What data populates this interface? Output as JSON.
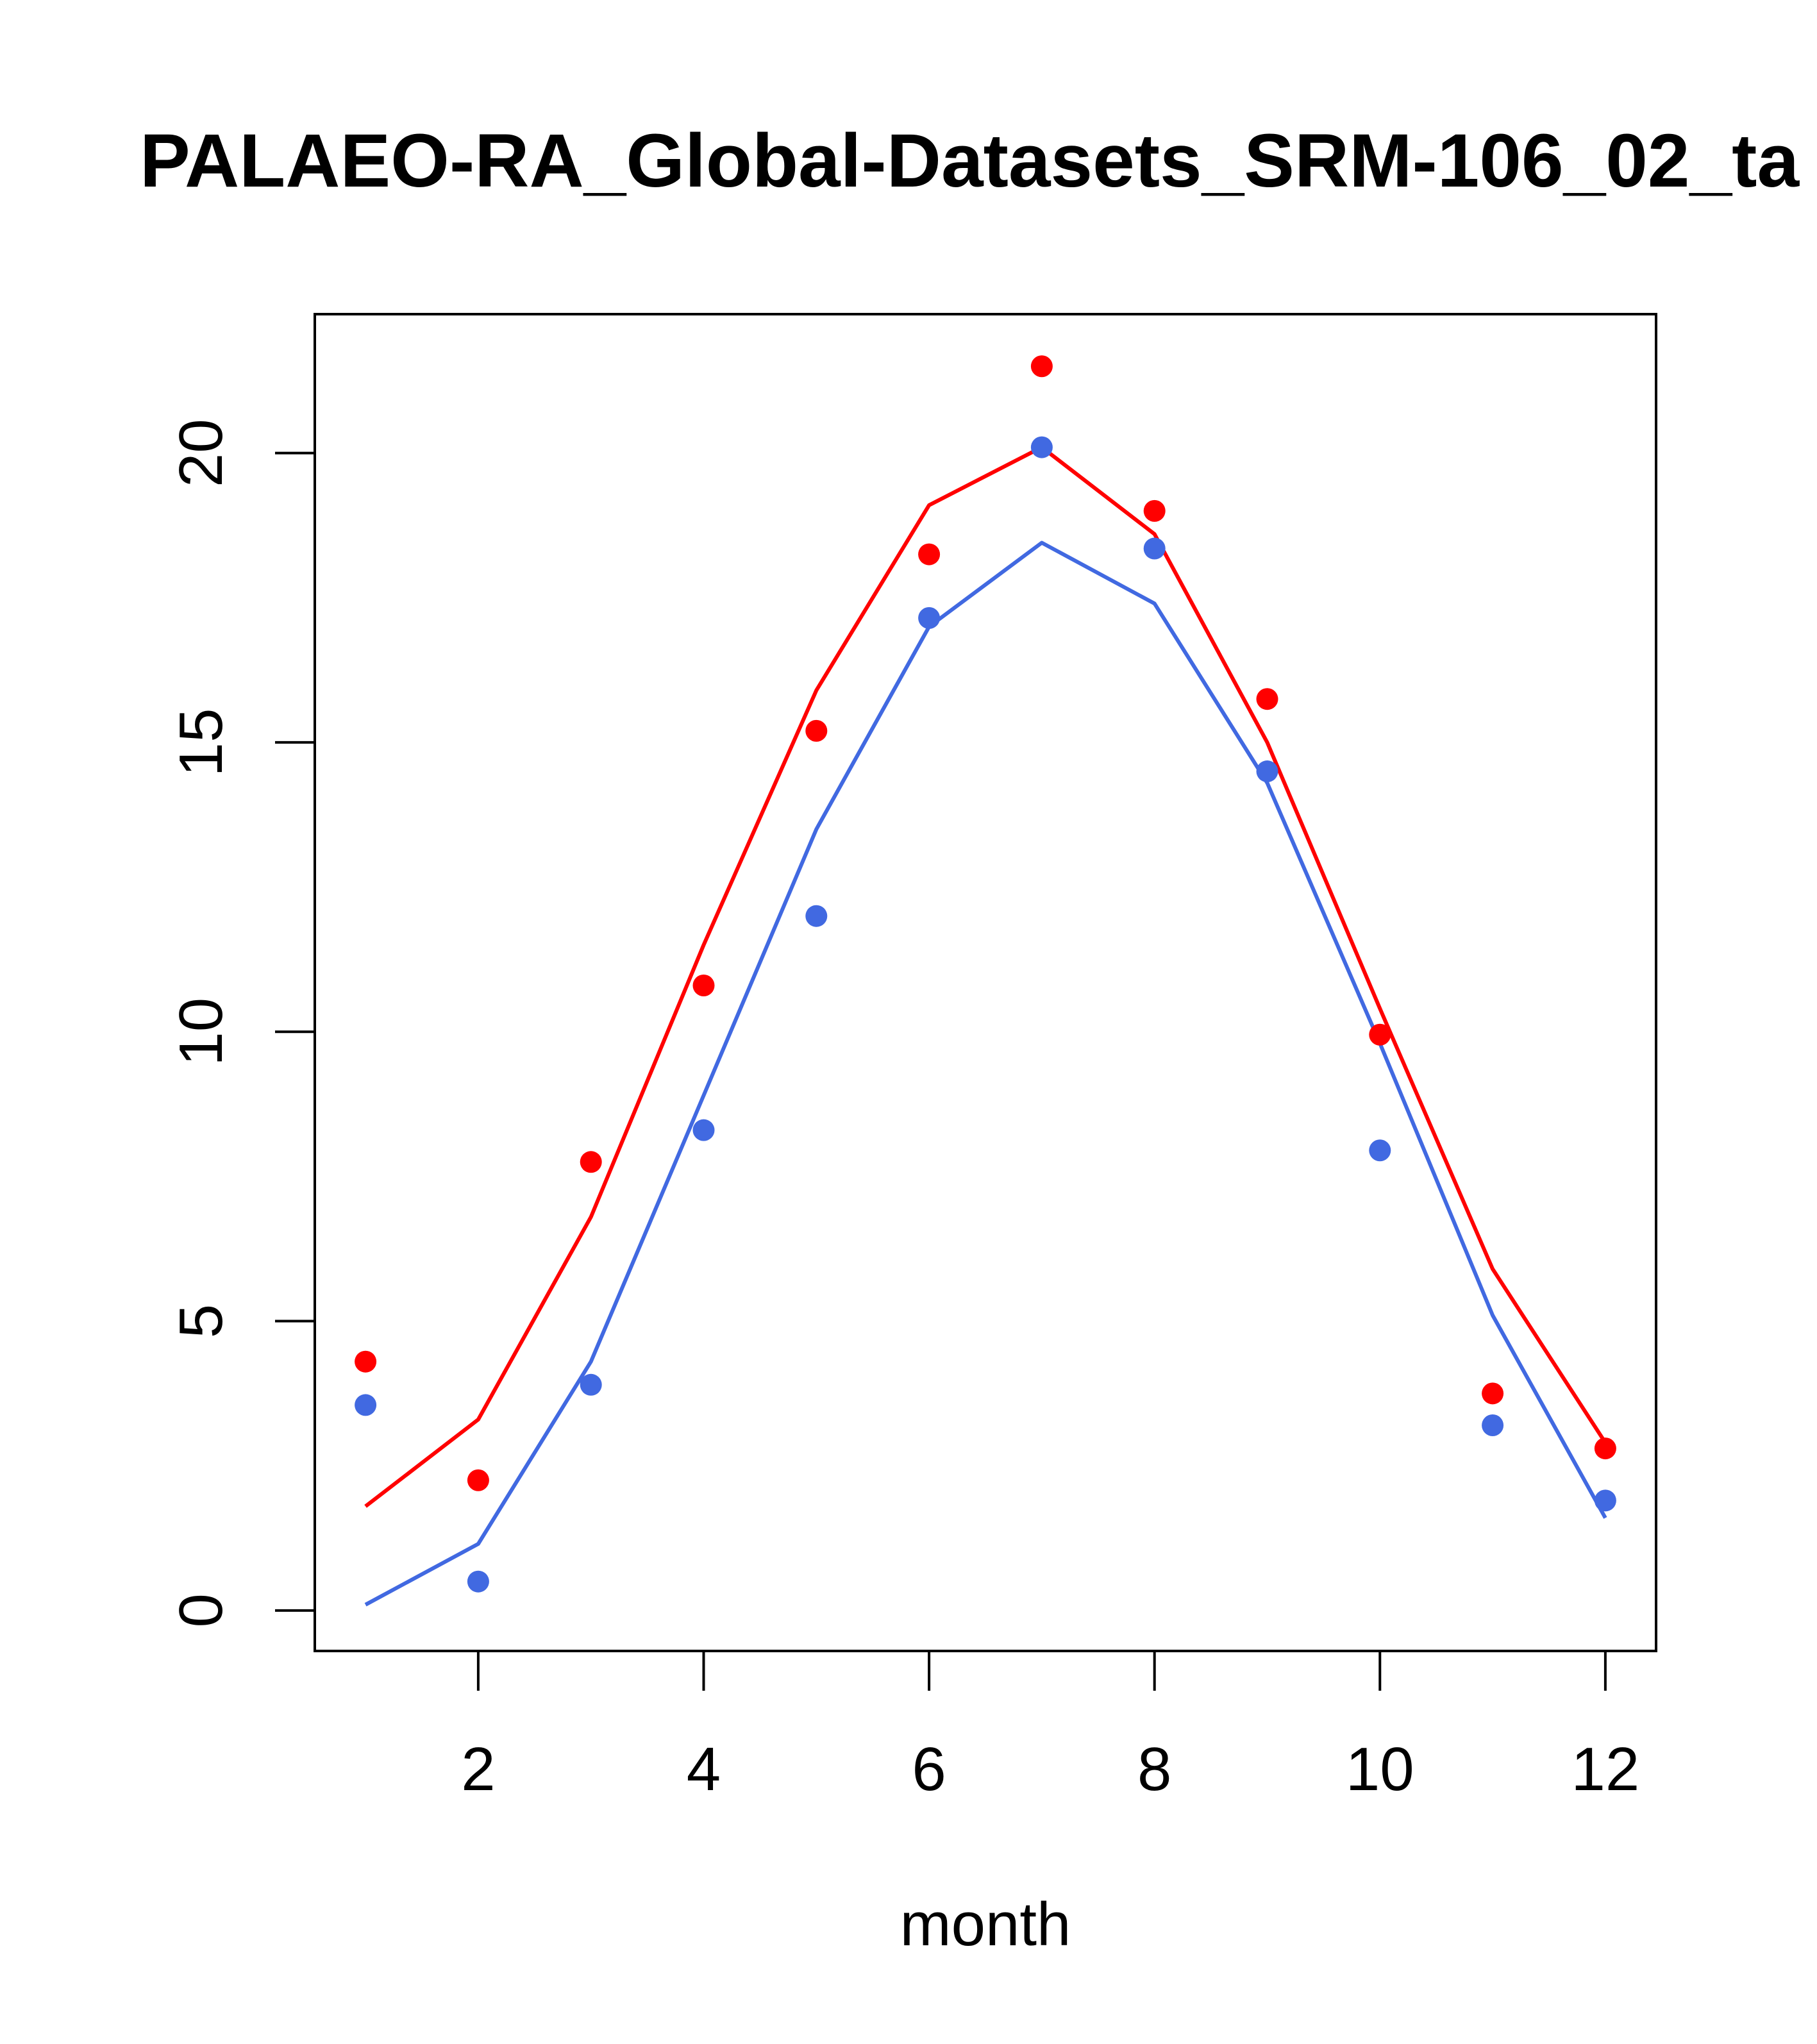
{
  "chart_data": {
    "type": "scatter",
    "title": "PALAEO-RA_Global-Datasets_SRM-106_02_ta",
    "xlabel": "month",
    "ylabel": "",
    "xlim": [
      0.55,
      12.45
    ],
    "ylim": [
      -0.7,
      22.4
    ],
    "x_ticks": [
      2,
      4,
      6,
      8,
      10,
      12
    ],
    "y_ticks": [
      0,
      5,
      10,
      15,
      20
    ],
    "grid": false,
    "legend": "none",
    "x": [
      1,
      2,
      3,
      4,
      5,
      6,
      7,
      8,
      9,
      10,
      11,
      12
    ],
    "series": [
      {
        "color": "#ff0000",
        "mark": "line",
        "values": [
          1.8,
          3.3,
          6.8,
          11.5,
          15.9,
          19.1,
          20.1,
          18.6,
          15.0,
          10.4,
          5.9,
          2.9
        ]
      },
      {
        "color": "#4169e1",
        "mark": "line",
        "values": [
          0.1,
          1.15,
          4.3,
          8.9,
          13.5,
          17.0,
          18.45,
          17.4,
          14.3,
          9.8,
          5.1,
          1.6
        ]
      },
      {
        "color": "#ff0000",
        "mark": "points",
        "values": [
          4.3,
          2.25,
          7.75,
          10.8,
          15.2,
          18.25,
          21.5,
          19.0,
          15.75,
          9.95,
          3.75,
          2.8
        ]
      },
      {
        "color": "#4169e1",
        "mark": "points",
        "values": [
          3.55,
          0.5,
          3.9,
          8.3,
          12.0,
          17.15,
          20.1,
          18.35,
          14.5,
          7.95,
          3.2,
          1.9
        ]
      }
    ]
  }
}
